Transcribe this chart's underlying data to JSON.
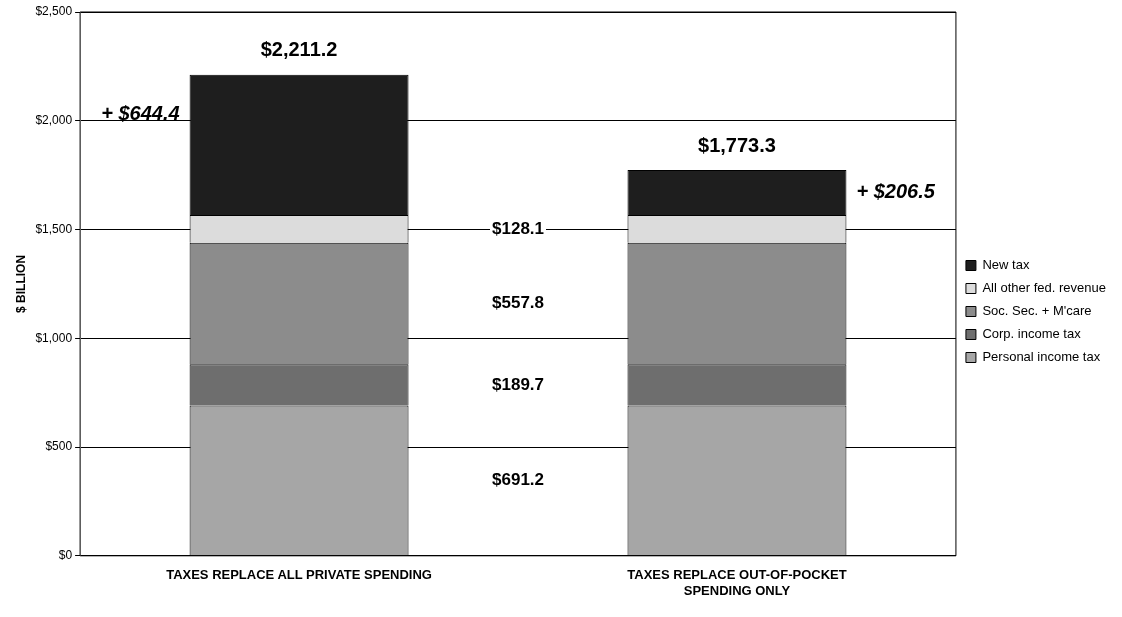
{
  "chart_data": {
    "type": "bar",
    "stacked": true,
    "ylabel": "$ BILLION",
    "categories": [
      "TAXES REPLACE ALL PRIVATE SPENDING",
      "TAXES REPLACE OUT-OF-POCKET SPENDING ONLY"
    ],
    "series": [
      {
        "name": "Personal income tax",
        "color": "#a6a6a6",
        "values": [
          691.2,
          691.2
        ]
      },
      {
        "name": "Corp. income tax",
        "color": "#6e6e6e",
        "values": [
          189.7,
          189.7
        ]
      },
      {
        "name": "Soc. Sec. + M'care",
        "color": "#8c8c8c",
        "values": [
          557.8,
          557.8
        ]
      },
      {
        "name": "All other fed. revenue",
        "color": "#dcdcdc",
        "values": [
          128.1,
          128.1
        ]
      },
      {
        "name": "New tax",
        "color": "#1e1e1e",
        "values": [
          644.4,
          206.5
        ]
      }
    ],
    "annotations": [
      "$691.2",
      "$189.7",
      "$557.8",
      "$128.1",
      "+ $644.4",
      "+ $206.5"
    ],
    "totals": [
      "$2,211.2",
      "$1,773.3"
    ],
    "ylim": [
      0,
      2500
    ],
    "yticks": [
      {
        "value": 0,
        "label": "$0"
      },
      {
        "value": 500,
        "label": "$500"
      },
      {
        "value": 1000,
        "label": "$1,000"
      },
      {
        "value": 1500,
        "label": "$1,500"
      },
      {
        "value": 2000,
        "label": "$2,000"
      },
      {
        "value": 2500,
        "label": "$2,500"
      }
    ],
    "grid": "y",
    "legend": "right"
  }
}
